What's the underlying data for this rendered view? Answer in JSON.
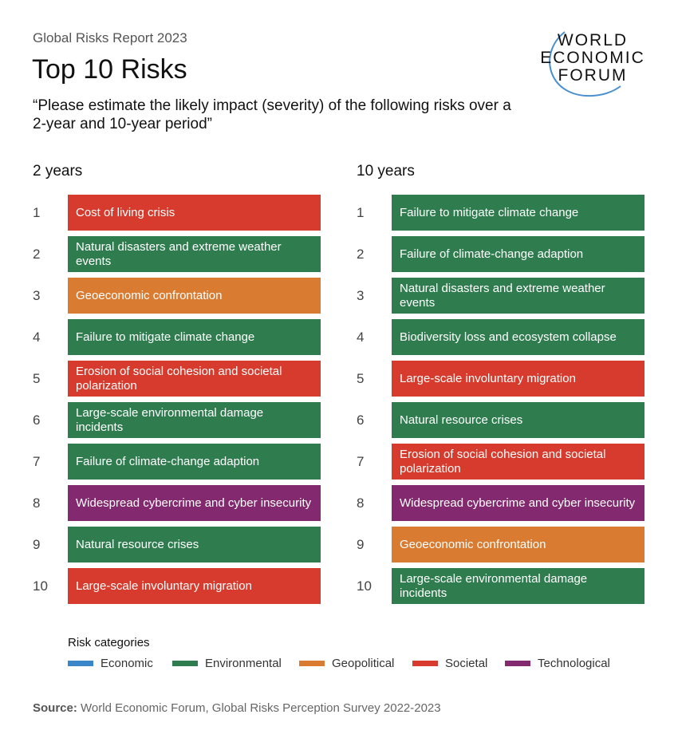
{
  "header": {
    "report": "Global Risks Report 2023",
    "title": "Top 10 Risks",
    "question": "“Please estimate the likely impact (severity) of the following risks over a 2-year and 10-year period”"
  },
  "logo": {
    "lines": [
      "WORLD",
      "ECONOMIC",
      "FORUM"
    ]
  },
  "colors": {
    "Economic": "#3a86c8",
    "Environmental": "#2f7d4f",
    "Geopolitical": "#d97b31",
    "Societal": "#d63b2d",
    "Technological": "#83296f"
  },
  "chart_data": {
    "type": "table",
    "columns": [
      {
        "heading": "2 years",
        "items": [
          {
            "rank": "1",
            "risk": "Cost of living crisis",
            "category": "Societal"
          },
          {
            "rank": "2",
            "risk": "Natural disasters and extreme weather events",
            "category": "Environmental"
          },
          {
            "rank": "3",
            "risk": "Geoeconomic confrontation",
            "category": "Geopolitical"
          },
          {
            "rank": "4",
            "risk": "Failure to mitigate climate change",
            "category": "Environmental"
          },
          {
            "rank": "5",
            "risk": "Erosion of social cohesion and societal polarization",
            "category": "Societal"
          },
          {
            "rank": "6",
            "risk": "Large-scale environmental damage incidents",
            "category": "Environmental"
          },
          {
            "rank": "7",
            "risk": "Failure of climate-change adaption",
            "category": "Environmental"
          },
          {
            "rank": "8",
            "risk": "Widespread cybercrime and cyber insecurity",
            "category": "Technological"
          },
          {
            "rank": "9",
            "risk": "Natural resource crises",
            "category": "Environmental"
          },
          {
            "rank": "10",
            "risk": "Large-scale involuntary migration",
            "category": "Societal"
          }
        ]
      },
      {
        "heading": "10 years",
        "items": [
          {
            "rank": "1",
            "risk": "Failure to mitigate climate change",
            "category": "Environmental"
          },
          {
            "rank": "2",
            "risk": "Failure of climate-change adaption",
            "category": "Environmental"
          },
          {
            "rank": "3",
            "risk": "Natural disasters and extreme weather events",
            "category": "Environmental"
          },
          {
            "rank": "4",
            "risk": "Biodiversity loss and ecosystem collapse",
            "category": "Environmental"
          },
          {
            "rank": "5",
            "risk": "Large-scale involuntary migration",
            "category": "Societal"
          },
          {
            "rank": "6",
            "risk": "Natural resource crises",
            "category": "Environmental"
          },
          {
            "rank": "7",
            "risk": "Erosion of social cohesion and societal polarization",
            "category": "Societal"
          },
          {
            "rank": "8",
            "risk": "Widespread cybercrime and cyber insecurity",
            "category": "Technological"
          },
          {
            "rank": "9",
            "risk": "Geoeconomic confrontation",
            "category": "Geopolitical"
          },
          {
            "rank": "10",
            "risk": "Large-scale environmental damage incidents",
            "category": "Environmental"
          }
        ]
      }
    ],
    "legend": {
      "title": "Risk categories",
      "entries": [
        "Economic",
        "Environmental",
        "Geopolitical",
        "Societal",
        "Technological"
      ],
      "placement": "bottom"
    }
  },
  "source": {
    "label": "Source:",
    "text": " World Economic Forum, Global Risks Perception Survey 2022-2023"
  }
}
